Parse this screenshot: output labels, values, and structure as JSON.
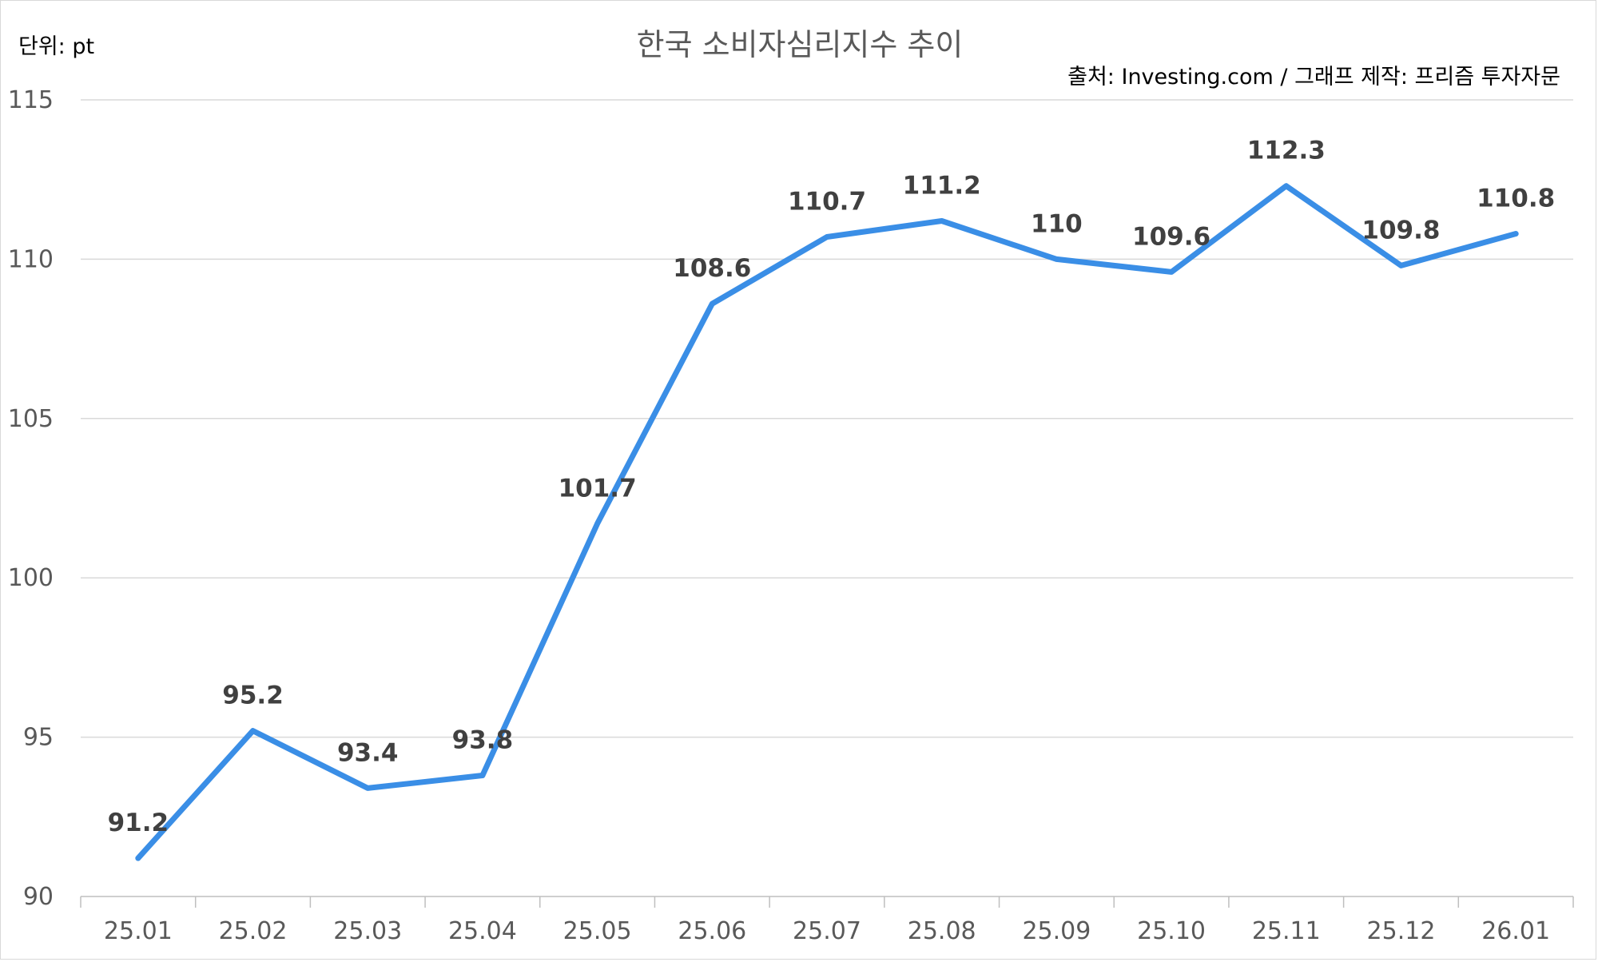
{
  "chart_data": {
    "type": "line",
    "title": "한국 소비자심리지수 추이",
    "unit_label": "단위: pt",
    "source_label": "출처: Investing.com / 그래프 제작: 프리즘 투자자문",
    "categories": [
      "25.01",
      "25.02",
      "25.03",
      "25.04",
      "25.05",
      "25.06",
      "25.07",
      "25.08",
      "25.09",
      "25.10",
      "25.11",
      "25.12",
      "26.01"
    ],
    "series": [
      {
        "values": [
          91.2,
          95.2,
          93.4,
          93.8,
          101.7,
          108.6,
          110.7,
          111.2,
          110,
          109.6,
          112.3,
          109.8,
          110.8
        ],
        "labels": [
          "91.2",
          "95.2",
          "93.4",
          "93.8",
          "101.7",
          "108.6",
          "110.7",
          "111.2",
          "110",
          "109.6",
          "112.3",
          "109.8",
          "110.8"
        ]
      }
    ],
    "ylim": [
      90,
      115
    ],
    "yticks": [
      "90",
      "95",
      "100",
      "105",
      "110",
      "115"
    ],
    "grid": true,
    "colors": {
      "line": "#3a8ee6",
      "label": "#404040"
    }
  }
}
